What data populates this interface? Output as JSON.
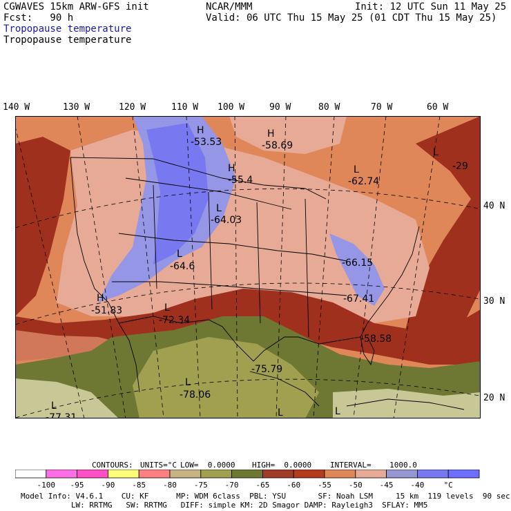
{
  "header": {
    "model": "CGWAVES 15km ARW-GFS init",
    "fcst": "Fcst:   90 h",
    "org": "NCAR/MMM",
    "init": "Init: 12 UTC Sun 11 May 25",
    "valid": "Valid: 06 UTC Thu 15 May 25 (01 CDT Thu 15 May 25)",
    "field_title": "Tropopause temperature",
    "field_subtitle": "Tropopause temperature"
  },
  "longitude_labels": [
    "140 W",
    "130 W",
    "120 W",
    "110 W",
    "100 W",
    "90 W",
    "80 W",
    "70 W",
    "60 W"
  ],
  "latitude_labels": [
    "40 N",
    "30 N",
    "20 N"
  ],
  "map_labels": [
    {
      "sym": "H",
      "value": "-53.53"
    },
    {
      "sym": "H",
      "value": "-58.69"
    },
    {
      "sym": "H",
      "value": "-55.4"
    },
    {
      "sym": "L",
      "value": "-62.74"
    },
    {
      "sym": "L",
      "value": "-29"
    },
    {
      "sym": "L",
      "value": "-64.03"
    },
    {
      "sym": "L",
      "value": "-64.6"
    },
    {
      "sym": "",
      "value": "-66.15"
    },
    {
      "sym": "H",
      "value": "-51.83"
    },
    {
      "sym": "L",
      "value": "-72.34"
    },
    {
      "sym": "",
      "value": "-67.41"
    },
    {
      "sym": "",
      "value": "-58.58"
    },
    {
      "sym": "",
      "value": "-75.79"
    },
    {
      "sym": "L",
      "value": "-78.06"
    },
    {
      "sym": "L",
      "value": "-77.31"
    },
    {
      "sym": "L",
      "value": ""
    },
    {
      "sym": "L",
      "value": ""
    }
  ],
  "contour_info": {
    "contours": "CONTOURS:",
    "units": "UNITS=°C",
    "low": "LOW=  0.0000",
    "high": "HIGH=  0.0000",
    "interval": "INTERVAL=    1000.0"
  },
  "colorbar": {
    "colors": [
      "#ffffff",
      "#ff6ee6",
      "#ff50c8",
      "#ffff78",
      "#ff8080",
      "#c8b482",
      "#a0a050",
      "#6e7832",
      "#a03c28",
      "#b43c1e",
      "#e0875a",
      "#e6aa96",
      "#9696d2",
      "#7878f0",
      "#6e6eff"
    ],
    "tick_labels": [
      "-100",
      "-95",
      "-90",
      "-85",
      "-80",
      "-75",
      "-70",
      "-65",
      "-60",
      "-55",
      "-50",
      "-45",
      "-40",
      "°C"
    ]
  },
  "footer": {
    "line1": "Model Info: V4.6.1    CU: KF      MP: WDM 6class  PBL: YSU       SF: Noah LSM     15 km  119 levels  90 sec",
    "line2": "           LW: RRTMG   SW: RRTMG   DIFF: simple KM: 2D Smagor DAMP: Rayleigh3  SFLAY: MM5"
  },
  "region_colors": {
    "warm_red": "#a0301e",
    "orange": "#e0875a",
    "pink": "#e6aa96",
    "lavender": "#9696e6",
    "blue": "#7878f0",
    "olive": "#6e7832",
    "olive_light": "#a0a050",
    "tan": "#c8c896",
    "salmon": "#d2785a"
  }
}
